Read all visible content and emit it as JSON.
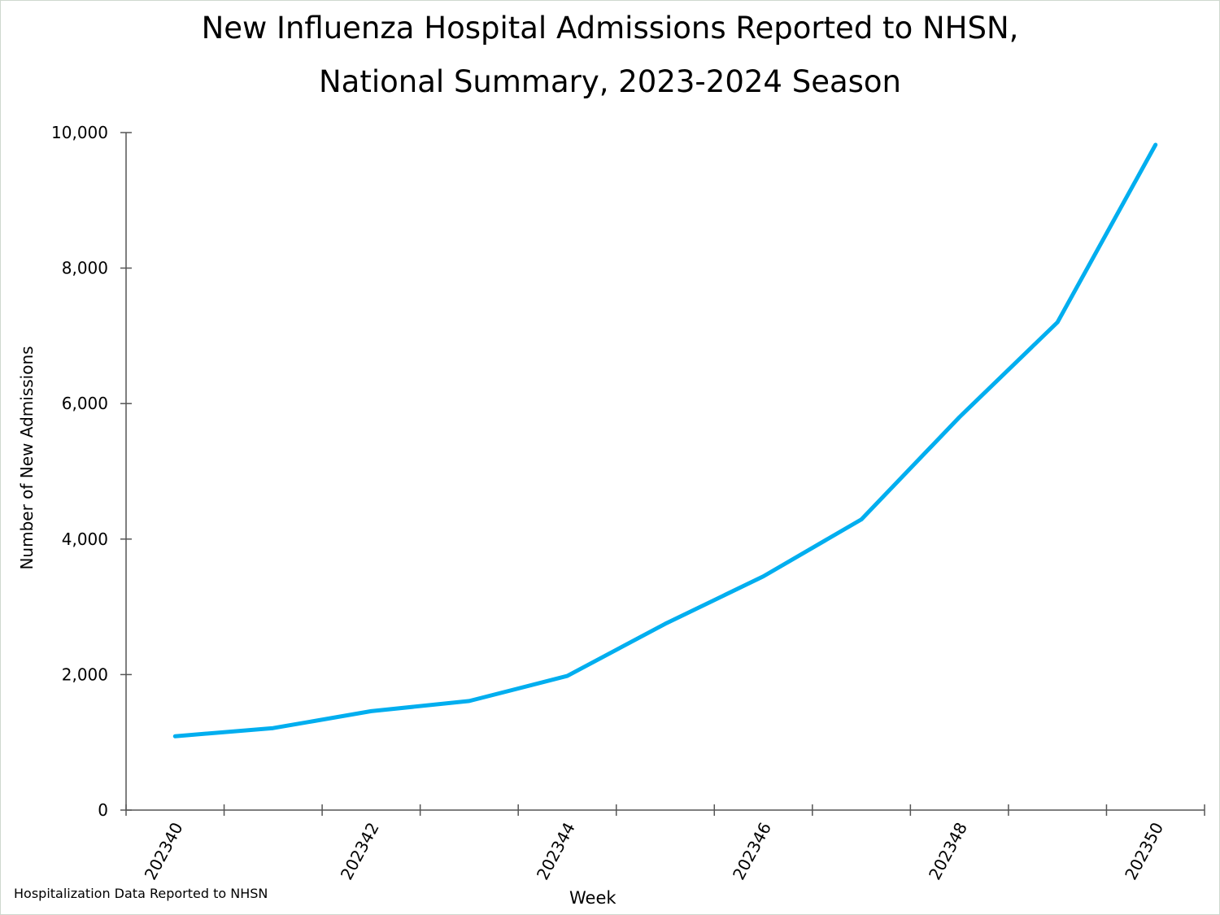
{
  "chart_data": {
    "type": "line",
    "title": "New Influenza Hospital Admissions Reported to NHSN,",
    "subtitle": "National Summary, 2023-2024 Season",
    "xlabel": "Week",
    "ylabel": "Number of New Admissions",
    "categories": [
      "202340",
      "202341",
      "202342",
      "202343",
      "202344",
      "202345",
      "202346",
      "202347",
      "202348",
      "202349",
      "202350"
    ],
    "x_tick_labels": [
      "202340",
      "202342",
      "202344",
      "202346",
      "202348",
      "202350"
    ],
    "y_tick_labels": [
      "0",
      "2,000",
      "4,000",
      "6,000",
      "8,000",
      "10,000"
    ],
    "ylim": [
      0,
      10000
    ],
    "grid": false,
    "series": [
      {
        "values": [
          1090,
          1210,
          1460,
          1610,
          1980,
          2750,
          3450,
          4290,
          5800,
          7200,
          9820
        ],
        "color": "#00AEEF"
      }
    ],
    "footnote": "Hospitalization Data Reported to NHSN"
  }
}
